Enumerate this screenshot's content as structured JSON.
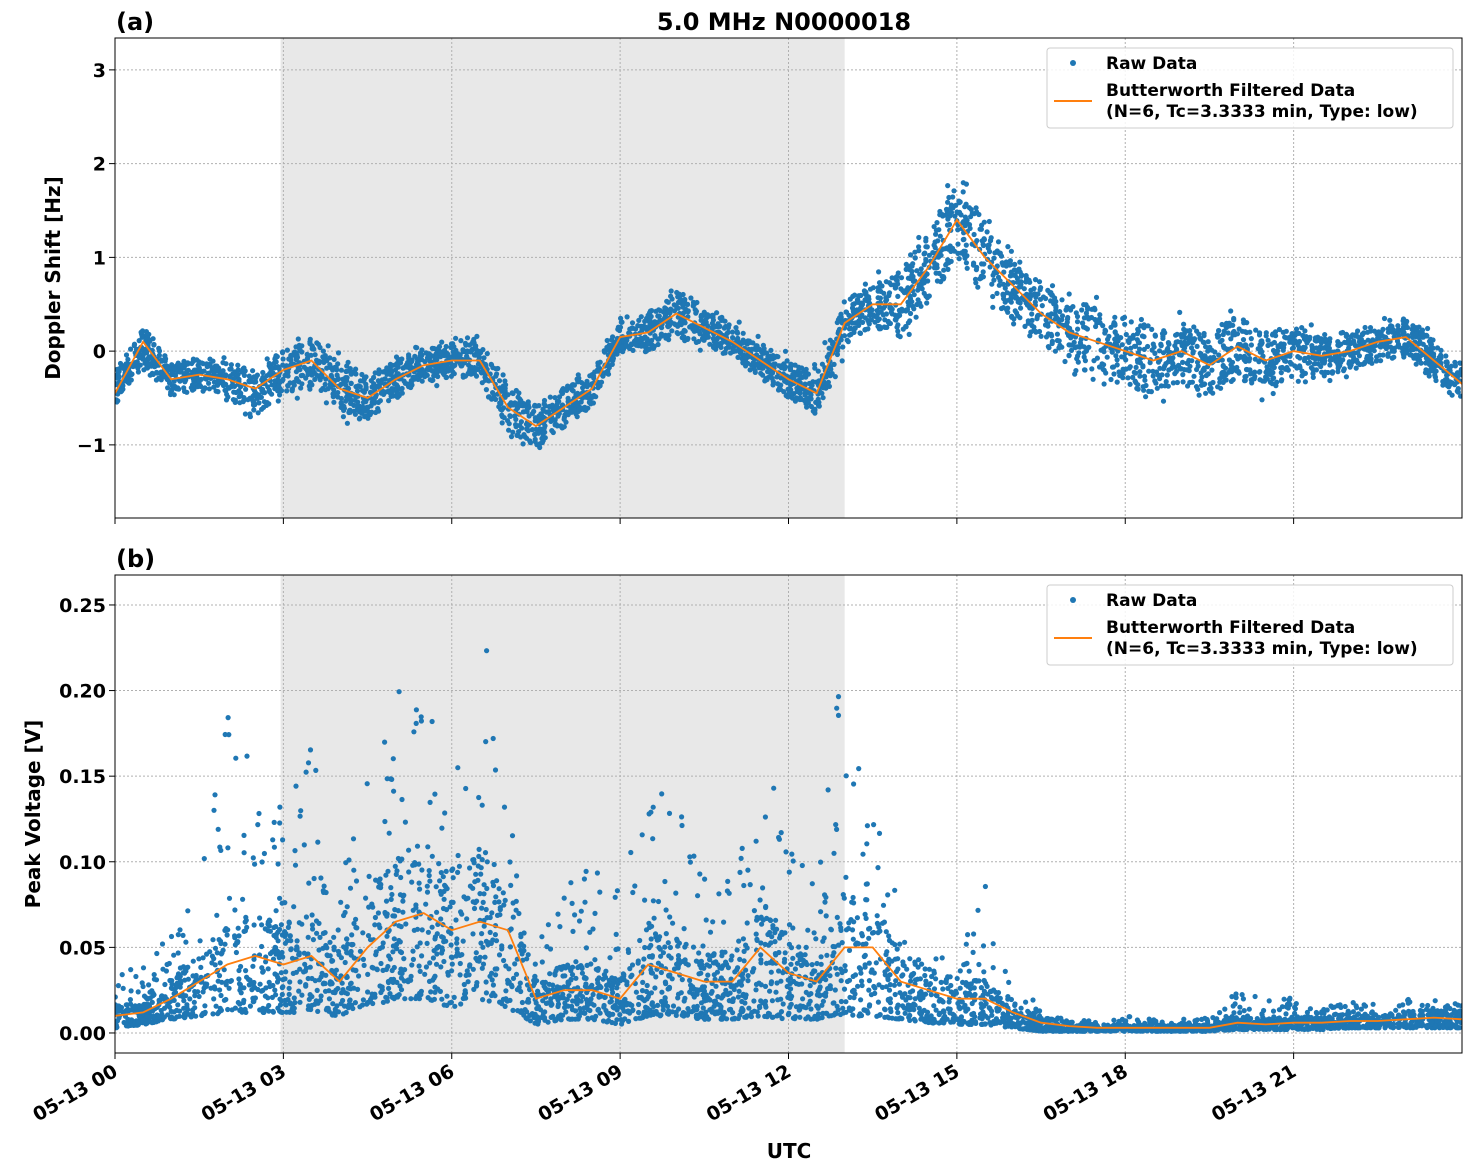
{
  "chart_data": [
    {
      "panel_label": "(a)",
      "title": "5.0 MHz N0000018",
      "type": "scatter+line",
      "ylabel": "Doppler Shift [Hz]",
      "xlabel": "",
      "xlim_hours_utc": [
        0,
        24
      ],
      "ylim": [
        -1.78,
        3.34
      ],
      "yticks": [
        {
          "v": 3,
          "label": "3"
        },
        {
          "v": 2,
          "label": "2"
        },
        {
          "v": 1,
          "label": "1"
        },
        {
          "v": 0,
          "label": "0"
        },
        {
          "v": -1,
          "label": "−1"
        }
      ],
      "grid": true,
      "legend_placement": "top-right",
      "shaded_interval_hours": [
        2.95,
        13.0
      ],
      "x_hours": [
        0,
        0.5,
        1,
        1.5,
        2,
        2.5,
        3,
        3.5,
        4,
        4.5,
        5,
        5.5,
        6,
        6.5,
        7,
        7.5,
        8,
        8.5,
        9,
        9.5,
        10,
        10.5,
        11,
        11.5,
        12,
        12.5,
        13,
        13.5,
        14,
        14.5,
        15,
        15.5,
        16,
        16.5,
        17,
        17.5,
        18,
        18.5,
        19,
        19.5,
        20,
        20.5,
        21,
        21.5,
        22,
        22.5,
        23,
        23.5,
        24
      ],
      "series": [
        {
          "name": "Raw Data",
          "kind": "dots",
          "color": "#1f77b4",
          "center": [
            -0.4,
            0.05,
            -0.3,
            -0.25,
            -0.3,
            -0.45,
            -0.2,
            -0.15,
            -0.4,
            -0.5,
            -0.3,
            -0.15,
            -0.1,
            -0.1,
            -0.6,
            -0.8,
            -0.6,
            -0.4,
            0.15,
            0.2,
            0.4,
            0.25,
            0.1,
            -0.1,
            -0.3,
            -0.45,
            0.3,
            0.5,
            0.5,
            0.9,
            1.4,
            1.0,
            0.7,
            0.4,
            0.2,
            0.1,
            0.0,
            -0.1,
            0.0,
            -0.15,
            0.05,
            -0.1,
            0.0,
            -0.05,
            0.0,
            0.1,
            0.15,
            -0.1,
            -0.35
          ],
          "spread": [
            0.3,
            0.35,
            0.3,
            0.3,
            0.3,
            0.4,
            0.4,
            0.5,
            0.5,
            0.4,
            0.35,
            0.3,
            0.3,
            0.35,
            0.4,
            0.4,
            0.35,
            0.3,
            0.3,
            0.35,
            0.4,
            0.35,
            0.3,
            0.3,
            0.35,
            0.35,
            0.4,
            0.4,
            0.6,
            0.6,
            0.7,
            0.7,
            0.6,
            0.55,
            0.55,
            0.6,
            0.6,
            0.6,
            0.55,
            0.55,
            0.55,
            0.5,
            0.45,
            0.4,
            0.35,
            0.35,
            0.35,
            0.35,
            0.35
          ]
        },
        {
          "name": "Butterworth Filtered Data",
          "name_line2": "(N=6, Tc=3.3333 min, Type: low)",
          "kind": "line",
          "color": "#ff7f0e",
          "values": [
            -0.45,
            0.1,
            -0.3,
            -0.25,
            -0.3,
            -0.4,
            -0.2,
            -0.1,
            -0.4,
            -0.5,
            -0.3,
            -0.15,
            -0.1,
            -0.1,
            -0.6,
            -0.8,
            -0.6,
            -0.4,
            0.15,
            0.2,
            0.4,
            0.25,
            0.1,
            -0.1,
            -0.3,
            -0.45,
            0.3,
            0.5,
            0.5,
            0.9,
            1.4,
            1.0,
            0.7,
            0.4,
            0.2,
            0.1,
            0.0,
            -0.1,
            0.0,
            -0.15,
            0.05,
            -0.1,
            0.0,
            -0.05,
            0.0,
            0.1,
            0.15,
            -0.1,
            -0.35
          ]
        }
      ]
    },
    {
      "panel_label": "(b)",
      "type": "scatter+line",
      "ylabel": "Peak Voltage [V]",
      "xlabel": "UTC",
      "xlim_hours_utc": [
        0,
        24
      ],
      "ylim": [
        -0.0117,
        0.2675
      ],
      "yticks": [
        {
          "v": 0.25,
          "label": "0.25"
        },
        {
          "v": 0.2,
          "label": "0.20"
        },
        {
          "v": 0.15,
          "label": "0.15"
        },
        {
          "v": 0.1,
          "label": "0.10"
        },
        {
          "v": 0.05,
          "label": "0.05"
        },
        {
          "v": 0,
          "label": "0.00"
        }
      ],
      "xticks": [
        {
          "v": 0,
          "label": "05-13 00"
        },
        {
          "v": 3,
          "label": "05-13 03"
        },
        {
          "v": 6,
          "label": "05-13 06"
        },
        {
          "v": 9,
          "label": "05-13 09"
        },
        {
          "v": 12,
          "label": "05-13 12"
        },
        {
          "v": 15,
          "label": "05-13 15"
        },
        {
          "v": 18,
          "label": "05-13 18"
        },
        {
          "v": 21,
          "label": "05-13 21"
        }
      ],
      "grid": true,
      "legend_placement": "top-right",
      "shaded_interval_hours": [
        2.95,
        13.0
      ],
      "x_hours": [
        0,
        0.5,
        1,
        1.5,
        2,
        2.5,
        3,
        3.5,
        4,
        4.5,
        5,
        5.5,
        6,
        6.5,
        7,
        7.5,
        8,
        8.5,
        9,
        9.5,
        10,
        10.5,
        11,
        11.5,
        12,
        12.5,
        13,
        13.5,
        14,
        14.5,
        15,
        15.5,
        16,
        16.5,
        17,
        17.5,
        18,
        18.5,
        19,
        19.5,
        20,
        20.5,
        21,
        21.5,
        22,
        22.5,
        23,
        23.5,
        24
      ],
      "series": [
        {
          "name": "Raw Data",
          "kind": "dots",
          "color": "#1f77b4",
          "max": [
            0.035,
            0.04,
            0.06,
            0.09,
            0.19,
            0.16,
            0.13,
            0.17,
            0.1,
            0.15,
            0.2,
            0.2,
            0.15,
            0.25,
            0.17,
            0.05,
            0.08,
            0.12,
            0.08,
            0.15,
            0.14,
            0.1,
            0.09,
            0.17,
            0.12,
            0.09,
            0.23,
            0.16,
            0.08,
            0.05,
            0.05,
            0.09,
            0.03,
            0.015,
            0.008,
            0.007,
            0.01,
            0.008,
            0.008,
            0.01,
            0.025,
            0.02,
            0.025,
            0.015,
            0.018,
            0.018,
            0.02,
            0.02,
            0.018
          ],
          "min": [
            0.003,
            0.005,
            0.008,
            0.01,
            0.012,
            0.012,
            0.012,
            0.012,
            0.01,
            0.015,
            0.02,
            0.02,
            0.015,
            0.02,
            0.015,
            0.005,
            0.008,
            0.008,
            0.005,
            0.01,
            0.01,
            0.008,
            0.008,
            0.01,
            0.008,
            0.008,
            0.01,
            0.01,
            0.008,
            0.006,
            0.005,
            0.005,
            0.003,
            0.001,
            0.001,
            0.001,
            0.001,
            0.001,
            0.001,
            0.001,
            0.002,
            0.002,
            0.002,
            0.002,
            0.003,
            0.003,
            0.003,
            0.003,
            0.003
          ]
        },
        {
          "name": "Butterworth Filtered Data",
          "name_line2": "(N=6, Tc=3.3333 min, Type: low)",
          "kind": "line",
          "color": "#ff7f0e",
          "values": [
            0.01,
            0.012,
            0.02,
            0.03,
            0.04,
            0.045,
            0.04,
            0.045,
            0.03,
            0.05,
            0.065,
            0.07,
            0.06,
            0.065,
            0.06,
            0.02,
            0.025,
            0.025,
            0.02,
            0.04,
            0.035,
            0.03,
            0.03,
            0.05,
            0.035,
            0.03,
            0.05,
            0.05,
            0.03,
            0.025,
            0.02,
            0.02,
            0.012,
            0.006,
            0.004,
            0.003,
            0.003,
            0.003,
            0.003,
            0.003,
            0.006,
            0.005,
            0.006,
            0.006,
            0.007,
            0.007,
            0.008,
            0.009,
            0.008
          ]
        }
      ]
    }
  ],
  "colors": {
    "raw": "#1f77b4",
    "filtered": "#ff7f0e",
    "shade": "#e8e8e8"
  }
}
